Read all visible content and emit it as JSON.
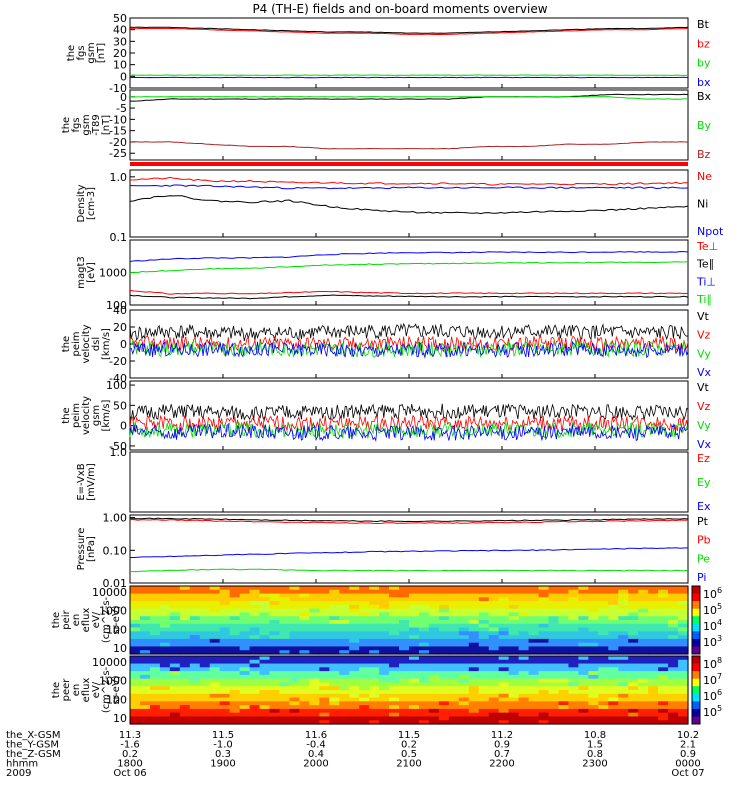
{
  "title": "P4 (TH-E) fields and on-board moments overview",
  "colors": {
    "black": "#000000",
    "red": "#ff0000",
    "green": "#00dd00",
    "blue": "#0000ff",
    "darkred": "#aa2222"
  },
  "chart_data": [
    {
      "type": "line",
      "panel": "fgs_gsm",
      "ylabel": [
        "the",
        "fgs",
        "gsm",
        "[nT]"
      ],
      "ylim": [
        -10,
        50
      ],
      "yticks": [
        "50",
        "40",
        "30",
        "20",
        "10",
        "0",
        "-10"
      ],
      "yticks_values": [
        50,
        40,
        30,
        20,
        10,
        0,
        -10
      ],
      "series": [
        {
          "name": "Bt",
          "color": "black",
          "values": [
            42,
            42,
            41,
            40,
            39,
            38,
            38,
            37,
            37,
            38,
            39,
            40,
            41,
            41,
            42
          ]
        },
        {
          "name": "bz",
          "color": "red",
          "values": [
            41,
            41,
            40,
            39,
            38,
            37,
            37,
            36,
            36,
            37,
            38,
            39,
            40,
            40,
            41
          ]
        },
        {
          "name": "by",
          "color": "green",
          "values": [
            1,
            1,
            1,
            1,
            1,
            1,
            1,
            1,
            1,
            1,
            1,
            1,
            1,
            1,
            1
          ]
        },
        {
          "name": "bx",
          "color": "blue",
          "values": [
            -1,
            -1,
            -1,
            -1,
            -1,
            -1,
            -1,
            -1,
            -1,
            -1,
            -1,
            -1,
            -1,
            -1,
            -1
          ]
        }
      ]
    },
    {
      "type": "line",
      "panel": "fgs_gsm_bkg",
      "ylabel": [
        "the",
        "fgs",
        "gsm",
        "-T89",
        "[nT]"
      ],
      "ylim": [
        -28,
        3
      ],
      "yticks": [
        "0",
        "-5",
        "-10",
        "-15",
        "-20",
        "-25"
      ],
      "yticks_values": [
        0,
        -5,
        -10,
        -15,
        -20,
        -25
      ],
      "series": [
        {
          "name": "Bx",
          "color": "black",
          "values": [
            -2,
            -1,
            -1,
            -1,
            -1,
            -1,
            -1,
            -1,
            -1,
            0,
            0,
            0,
            1,
            1,
            1
          ]
        },
        {
          "name": "By",
          "color": "green",
          "values": [
            0,
            0,
            0,
            0,
            0,
            0,
            0,
            0,
            0,
            0,
            0,
            0,
            0,
            -1,
            -1
          ]
        },
        {
          "name": "Bz",
          "color": "darkred",
          "values": [
            -20,
            -20,
            -21,
            -22,
            -22,
            -23,
            -23,
            -23,
            -23,
            -22,
            -22,
            -21,
            -21,
            -20,
            -20
          ]
        }
      ]
    },
    {
      "type": "line",
      "panel": "density",
      "ylabel": [
        "Density",
        "[cm-3]"
      ],
      "ylim": [
        0.1,
        1.3
      ],
      "yticks": [
        "1.0",
        "0.1"
      ],
      "yticks_values": [
        1.0,
        0.1
      ],
      "yscale": "log",
      "series": [
        {
          "name": "Ne",
          "color": "red",
          "values": [
            0.9,
            0.95,
            0.85,
            0.85,
            0.8,
            0.8,
            0.78,
            0.78,
            0.78,
            0.75,
            0.76,
            0.76,
            0.76,
            0.78,
            0.8
          ]
        },
        {
          "name": "Ni",
          "color": "black",
          "values": [
            0.4,
            0.5,
            0.4,
            0.38,
            0.4,
            0.32,
            0.28,
            0.26,
            0.25,
            0.25,
            0.26,
            0.27,
            0.28,
            0.3,
            0.32
          ]
        },
        {
          "name": "Npot",
          "color": "blue",
          "values": [
            0.7,
            0.72,
            0.7,
            0.68,
            0.65,
            0.65,
            0.65,
            0.66,
            0.66,
            0.66,
            0.66,
            0.66,
            0.66,
            0.66,
            0.66
          ]
        }
      ]
    },
    {
      "type": "line",
      "panel": "temperature",
      "ylabel": [
        "magt3",
        "[eV]"
      ],
      "ylim": [
        100,
        10000
      ],
      "yticks": [
        "1000",
        "100"
      ],
      "yticks_values": [
        1000,
        100
      ],
      "yscale": "log",
      "series": [
        {
          "name": "Te⊥",
          "color": "red",
          "values": [
            280,
            220,
            230,
            220,
            240,
            260,
            240,
            230,
            230,
            230,
            230,
            230,
            230,
            230,
            230
          ]
        },
        {
          "name": "Te∥",
          "color": "black",
          "values": [
            200,
            170,
            165,
            160,
            180,
            200,
            190,
            185,
            180,
            180,
            180,
            180,
            180,
            180,
            180
          ]
        },
        {
          "name": "Ti⊥",
          "color": "blue",
          "values": [
            2200,
            2600,
            2800,
            2800,
            3000,
            3600,
            3900,
            4100,
            4100,
            4200,
            4200,
            4200,
            4300,
            4300,
            4300
          ]
        },
        {
          "name": "Ti∥",
          "color": "green",
          "values": [
            1000,
            1150,
            1300,
            1350,
            1500,
            1700,
            1800,
            1850,
            1900,
            1950,
            2000,
            2000,
            2050,
            2050,
            2100
          ]
        }
      ]
    },
    {
      "type": "line",
      "panel": "peim_velocity_dsl",
      "ylabel": [
        "the",
        "peim",
        "velocity",
        "dsl",
        "[km/s]"
      ],
      "ylim": [
        -40,
        40
      ],
      "yticks": [
        "40",
        "20",
        "0",
        "-20",
        "-40"
      ],
      "yticks_values": [
        40,
        20,
        0,
        -20,
        -40
      ],
      "series": [
        {
          "name": "Vt",
          "color": "black",
          "values": [
            12,
            15,
            13,
            12,
            13,
            14,
            15,
            15,
            15,
            14,
            15,
            14,
            14,
            13,
            13
          ]
        },
        {
          "name": "Vz",
          "color": "red",
          "values": [
            0,
            1,
            0,
            0,
            1,
            0,
            0,
            1,
            0,
            0,
            1,
            0,
            0,
            1,
            0
          ]
        },
        {
          "name": "Vy",
          "color": "green",
          "values": [
            -5,
            -6,
            -5,
            -5,
            -6,
            -6,
            -7,
            -6,
            -6,
            -6,
            -6,
            -5,
            -6,
            -6,
            -5
          ]
        },
        {
          "name": "Vx",
          "color": "blue",
          "values": [
            -6,
            -7,
            -6,
            -6,
            -7,
            -7,
            -8,
            -7,
            -7,
            -7,
            -7,
            -6,
            -7,
            -7,
            -6
          ]
        }
      ]
    },
    {
      "type": "line",
      "panel": "peim_velocity_gsm",
      "ylabel": [
        "the",
        "peim",
        "velocity",
        "gsm",
        "[km/s]"
      ],
      "ylim": [
        -60,
        110
      ],
      "yticks": [
        "100",
        "50",
        "0",
        "-50"
      ],
      "yticks_values": [
        100,
        50,
        0,
        -50
      ],
      "series": [
        {
          "name": "Vt",
          "color": "black",
          "values": [
            30,
            35,
            32,
            30,
            32,
            34,
            36,
            36,
            36,
            34,
            35,
            34,
            34,
            32,
            32
          ]
        },
        {
          "name": "Vz",
          "color": "red",
          "values": [
            5,
            6,
            5,
            5,
            6,
            5,
            5,
            6,
            5,
            5,
            6,
            5,
            5,
            6,
            5
          ]
        },
        {
          "name": "Vy",
          "color": "green",
          "values": [
            -10,
            -12,
            -10,
            -10,
            -12,
            -12,
            -14,
            -12,
            -12,
            -12,
            -12,
            -10,
            -12,
            -12,
            -10
          ]
        },
        {
          "name": "Vx",
          "color": "blue",
          "values": [
            -15,
            -18,
            -15,
            -15,
            -18,
            -18,
            -20,
            -18,
            -18,
            -18,
            -18,
            -15,
            -18,
            -18,
            -15
          ]
        }
      ]
    },
    {
      "type": "line",
      "panel": "e_vxb",
      "ylabel": [
        "E=-VxB",
        "[mV/m]"
      ],
      "ylim": [
        0,
        1
      ],
      "yticks": [
        "1.0"
      ],
      "yticks_values": [
        1.0
      ],
      "series": [
        {
          "name": "Ez",
          "color": "red",
          "values": []
        },
        {
          "name": "Ey",
          "color": "green",
          "values": []
        },
        {
          "name": "Ex",
          "color": "blue",
          "values": []
        }
      ]
    },
    {
      "type": "line",
      "panel": "pressure",
      "ylabel": [
        "Pressure",
        "[nPa]"
      ],
      "ylim": [
        0.01,
        1.2
      ],
      "yticks": [
        "1.00",
        "0.10",
        "0.01"
      ],
      "yticks_values": [
        1.0,
        0.1,
        0.01
      ],
      "yscale": "log",
      "series": [
        {
          "name": "Pt",
          "color": "black",
          "values": [
            0.95,
            0.93,
            0.9,
            0.86,
            0.82,
            0.8,
            0.78,
            0.77,
            0.78,
            0.8,
            0.82,
            0.84,
            0.87,
            0.9,
            0.93
          ]
        },
        {
          "name": "Pb",
          "color": "red",
          "values": [
            0.85,
            0.84,
            0.8,
            0.76,
            0.72,
            0.7,
            0.68,
            0.67,
            0.68,
            0.7,
            0.72,
            0.75,
            0.78,
            0.8,
            0.84
          ]
        },
        {
          "name": "Pe",
          "color": "green",
          "values": [
            0.022,
            0.024,
            0.026,
            0.026,
            0.025,
            0.024,
            0.024,
            0.024,
            0.024,
            0.024,
            0.024,
            0.024,
            0.024,
            0.024,
            0.024
          ]
        },
        {
          "name": "Pi",
          "color": "blue",
          "values": [
            0.06,
            0.065,
            0.07,
            0.075,
            0.08,
            0.085,
            0.09,
            0.093,
            0.095,
            0.098,
            0.1,
            0.105,
            0.11,
            0.115,
            0.12
          ]
        }
      ]
    },
    {
      "type": "heatmap",
      "panel": "peir_en_eflux",
      "ylabel": [
        "the",
        "peir",
        "en",
        "eflux",
        "eV/",
        "(cm^2-s-",
        "sr-eV)"
      ],
      "yticks": [
        "10000",
        "1000",
        "100",
        "10"
      ],
      "colorbar_ticks": [
        "10^6",
        "10^5",
        "10^4",
        "10^3"
      ]
    },
    {
      "type": "heatmap",
      "panel": "peer_en_eflux",
      "ylabel": [
        "the",
        "peer",
        "en",
        "eflux",
        "eV/",
        "(cm^2-s-",
        "sr-eV)"
      ],
      "yticks": [
        "10000",
        "1000",
        "100",
        "10"
      ],
      "colorbar_ticks": [
        "10^8",
        "10^7",
        "10^6",
        "10^5"
      ]
    }
  ],
  "orbit": {
    "labels": [
      "the_X-GSM",
      "the_Y-GSM",
      "the_Z-GSM",
      "hhmm",
      "2009"
    ],
    "columns": [
      [
        "11.3",
        "-1.6",
        "0.2",
        "1800",
        "Oct 06"
      ],
      [
        "11.5",
        "-1.0",
        "0.3",
        "1900",
        ""
      ],
      [
        "11.6",
        "-0.4",
        "0.4",
        "2000",
        ""
      ],
      [
        "11.5",
        "0.2",
        "0.5",
        "2100",
        ""
      ],
      [
        "11.2",
        "0.9",
        "0.7",
        "2200",
        ""
      ],
      [
        "10.8",
        "1.5",
        "0.8",
        "2300",
        ""
      ],
      [
        "10.2",
        "2.1",
        "0.9",
        "0000",
        "Oct 07"
      ]
    ]
  }
}
